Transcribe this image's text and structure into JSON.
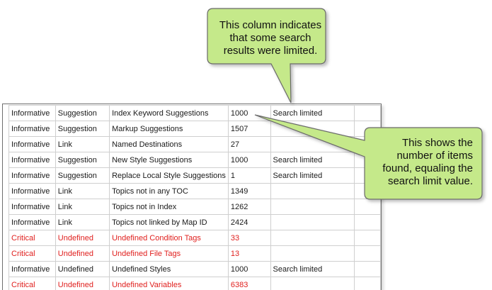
{
  "rows": [
    {
      "severity": "Informative",
      "type": "Suggestion",
      "name": "Index Keyword Suggestions",
      "count": "1000",
      "status": "Search limited",
      "critical": false
    },
    {
      "severity": "Informative",
      "type": "Suggestion",
      "name": "Markup Suggestions",
      "count": "1507",
      "status": "",
      "critical": false
    },
    {
      "severity": "Informative",
      "type": "Link",
      "name": "Named Destinations",
      "count": "27",
      "status": "",
      "critical": false
    },
    {
      "severity": "Informative",
      "type": "Suggestion",
      "name": "New Style Suggestions",
      "count": "1000",
      "status": "Search limited",
      "critical": false
    },
    {
      "severity": "Informative",
      "type": "Suggestion",
      "name": "Replace Local Style Suggestions",
      "count": "1",
      "status": "Search limited",
      "critical": false
    },
    {
      "severity": "Informative",
      "type": "Link",
      "name": "Topics not in any TOC",
      "count": "1349",
      "status": "",
      "critical": false
    },
    {
      "severity": "Informative",
      "type": "Link",
      "name": "Topics not in Index",
      "count": "1262",
      "status": "",
      "critical": false
    },
    {
      "severity": "Informative",
      "type": "Link",
      "name": "Topics not linked by Map ID",
      "count": "2424",
      "status": "",
      "critical": false
    },
    {
      "severity": "Critical",
      "type": "Undefined",
      "name": "Undefined Condition Tags",
      "count": "33",
      "status": "",
      "critical": true
    },
    {
      "severity": "Critical",
      "type": "Undefined",
      "name": "Undefined File Tags",
      "count": "13",
      "status": "",
      "critical": true
    },
    {
      "severity": "Informative",
      "type": "Undefined",
      "name": "Undefined Styles",
      "count": "1000",
      "status": "Search limited",
      "critical": false
    },
    {
      "severity": "Critical",
      "type": "Undefined",
      "name": "Undefined Variables",
      "count": "6383",
      "status": "",
      "critical": true
    }
  ],
  "callouts": {
    "status_column": "This column indicates that some search results were limited.",
    "count_column": "This shows the number of items found, equaling the search limit value."
  },
  "colors": {
    "callout_fill": "#c5e98a",
    "callout_border": "#6a6a6a",
    "critical_text": "#e0201e",
    "grid_line": "#cfcfcf"
  }
}
